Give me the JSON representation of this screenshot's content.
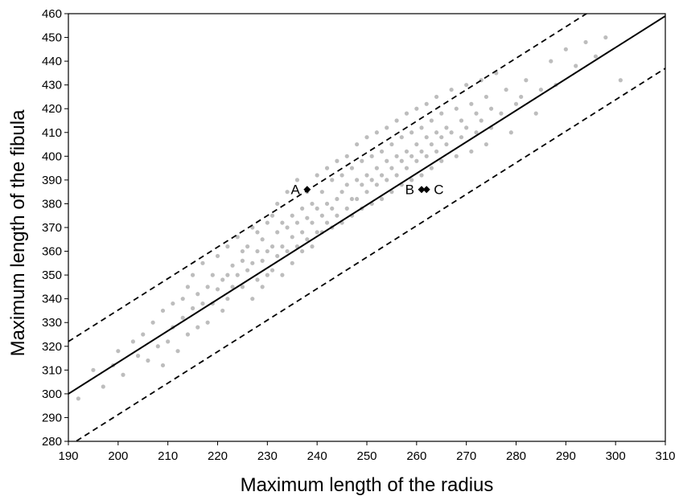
{
  "chart_data": {
    "type": "scatter",
    "title": "",
    "xlabel": "Maximum length of the radius",
    "ylabel": "Maximum length of the fibula",
    "xlim": [
      190,
      310
    ],
    "ylim": [
      280,
      460
    ],
    "x_ticks": [
      190,
      200,
      210,
      220,
      230,
      240,
      250,
      260,
      270,
      280,
      290,
      300,
      310
    ],
    "y_ticks": [
      280,
      290,
      300,
      310,
      320,
      330,
      340,
      350,
      360,
      370,
      380,
      390,
      400,
      410,
      420,
      430,
      440,
      450,
      460
    ],
    "grid": false,
    "legend": "none",
    "colors": {
      "points": "#bdbdbd",
      "lines": "#000000",
      "highlight": "#000000"
    },
    "series": [
      {
        "type": "scatter",
        "color": "#bdbdbd",
        "x": [
          192,
          195,
          197,
          199,
          200,
          201,
          203,
          204,
          205,
          206,
          207,
          208,
          209,
          209,
          210,
          211,
          211,
          212,
          213,
          213,
          214,
          214,
          215,
          215,
          216,
          216,
          217,
          217,
          218,
          218,
          219,
          219,
          220,
          220,
          221,
          221,
          222,
          222,
          222,
          223,
          223,
          224,
          224,
          225,
          225,
          225,
          226,
          226,
          227,
          227,
          227,
          228,
          228,
          228,
          229,
          229,
          229,
          230,
          230,
          230,
          231,
          231,
          231,
          232,
          232,
          232,
          233,
          233,
          233,
          234,
          234,
          234,
          235,
          235,
          235,
          236,
          236,
          236,
          237,
          237,
          237,
          238,
          238,
          238,
          239,
          239,
          239,
          240,
          240,
          240,
          241,
          241,
          241,
          242,
          242,
          242,
          243,
          243,
          243,
          244,
          244,
          244,
          245,
          245,
          245,
          246,
          246,
          246,
          247,
          247,
          247,
          248,
          248,
          248,
          249,
          249,
          249,
          250,
          250,
          250,
          251,
          251,
          251,
          252,
          252,
          252,
          253,
          253,
          253,
          254,
          254,
          254,
          255,
          255,
          255,
          256,
          256,
          256,
          257,
          257,
          257,
          258,
          258,
          258,
          259,
          259,
          259,
          260,
          260,
          260,
          261,
          261,
          261,
          262,
          262,
          262,
          263,
          263,
          263,
          264,
          264,
          264,
          265,
          265,
          265,
          266,
          266,
          267,
          267,
          268,
          268,
          269,
          269,
          270,
          270,
          271,
          271,
          272,
          272,
          273,
          273,
          274,
          274,
          275,
          275,
          276,
          277,
          278,
          279,
          280,
          281,
          282,
          284,
          285,
          287,
          288,
          290,
          292,
          294,
          296,
          298,
          301
        ],
        "y": [
          298,
          310,
          303,
          312,
          318,
          308,
          322,
          316,
          325,
          314,
          330,
          320,
          312,
          335,
          322,
          338,
          328,
          318,
          340,
          332,
          345,
          325,
          336,
          350,
          342,
          328,
          355,
          338,
          345,
          330,
          350,
          338,
          358,
          344,
          348,
          335,
          362,
          350,
          340,
          354,
          345,
          366,
          350,
          356,
          345,
          360,
          352,
          362,
          340,
          370,
          355,
          360,
          348,
          368,
          356,
          365,
          345,
          372,
          360,
          350,
          362,
          375,
          352,
          368,
          358,
          380,
          362,
          372,
          350,
          370,
          360,
          385,
          366,
          375,
          355,
          372,
          362,
          390,
          368,
          378,
          360,
          374,
          365,
          385,
          372,
          380,
          362,
          378,
          368,
          392,
          375,
          385,
          368,
          380,
          372,
          395,
          378,
          390,
          370,
          382,
          375,
          398,
          385,
          392,
          372,
          388,
          378,
          400,
          382,
          395,
          375,
          390,
          382,
          405,
          388,
          398,
          378,
          392,
          385,
          408,
          390,
          400,
          380,
          395,
          388,
          410,
          392,
          402,
          382,
          398,
          390,
          412,
          395,
          405,
          385,
          400,
          392,
          415,
          398,
          408,
          388,
          402,
          395,
          418,
          400,
          410,
          390,
          405,
          398,
          420,
          402,
          412,
          392,
          408,
          400,
          422,
          405,
          415,
          395,
          410,
          402,
          425,
          408,
          418,
          398,
          412,
          405,
          428,
          410,
          420,
          400,
          415,
          408,
          430,
          412,
          422,
          402,
          418,
          410,
          432,
          415,
          425,
          405,
          420,
          412,
          435,
          418,
          428,
          410,
          422,
          425,
          432,
          418,
          428,
          440,
          430,
          445,
          438,
          448,
          442,
          450,
          432
        ]
      },
      {
        "type": "line",
        "name": "",
        "style": "solid",
        "x": [
          190,
          310
        ],
        "y": [
          300,
          459
        ]
      },
      {
        "type": "line",
        "name": "",
        "style": "dashed",
        "x": [
          190,
          310
        ],
        "y": [
          322,
          481
        ]
      },
      {
        "type": "line",
        "name": "",
        "style": "dashed",
        "x": [
          190,
          310
        ],
        "y": [
          278,
          437
        ]
      }
    ],
    "annotations": [
      {
        "label": "A",
        "x": 238,
        "y": 386,
        "label_side": "left"
      },
      {
        "label": "B",
        "x": 261,
        "y": 386,
        "label_side": "left"
      },
      {
        "label": "C",
        "x": 262,
        "y": 386,
        "label_side": "right"
      }
    ]
  }
}
